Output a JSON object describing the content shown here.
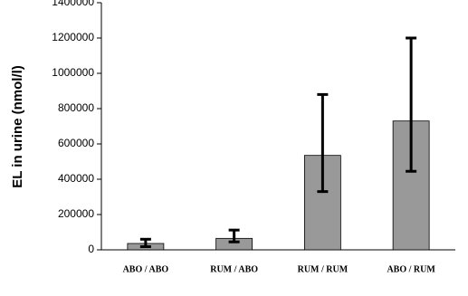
{
  "chart_data": {
    "type": "bar",
    "y_label": "EL in urine (nmol/l)",
    "categories": [
      "ABO / ABO",
      "RUM / ABO",
      "RUM / RUM",
      "ABO / RUM"
    ],
    "values": [
      36000,
      65000,
      535000,
      730000
    ],
    "error_bars": {
      "lower": [
        18000,
        45000,
        330000,
        445000
      ],
      "upper": [
        60000,
        112000,
        880000,
        1200000
      ]
    },
    "color": "#999999",
    "ylim": [
      0,
      1400000
    ],
    "yticks": [
      0,
      200000,
      400000,
      600000,
      800000,
      1000000,
      1200000,
      1400000
    ],
    "grid": false
  }
}
